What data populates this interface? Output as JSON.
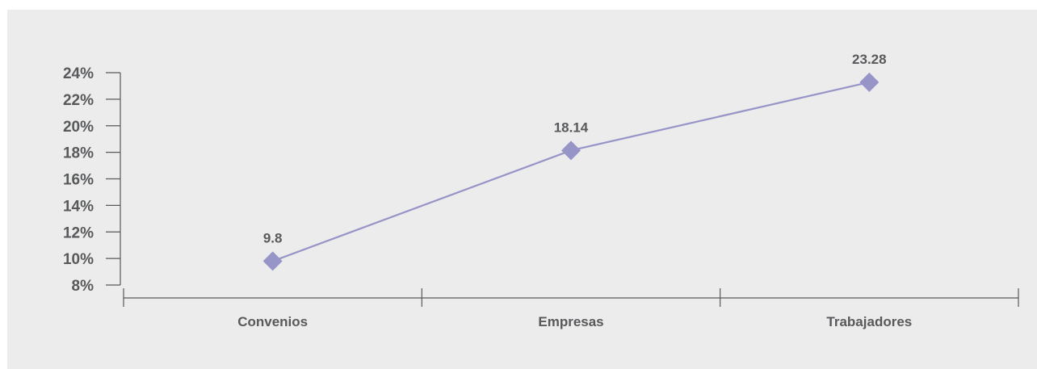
{
  "chart_data": {
    "type": "line",
    "categories": [
      "Convenios",
      "Empresas",
      "Trabajadores"
    ],
    "series": [
      {
        "values": [
          9.8,
          18.14,
          23.28
        ],
        "labels": [
          "9.8",
          "18.14",
          "23.28"
        ]
      }
    ],
    "yticks": [
      "8%",
      "10%",
      "12%",
      "14%",
      "16%",
      "18%",
      "20%",
      "22%",
      "24%"
    ],
    "ylim": [
      8,
      24
    ],
    "title": "",
    "xlabel": "",
    "ylabel": "",
    "grid": false,
    "colors": {
      "series": "#9794c8",
      "axis": "#58595b",
      "background": "#ececec"
    }
  }
}
